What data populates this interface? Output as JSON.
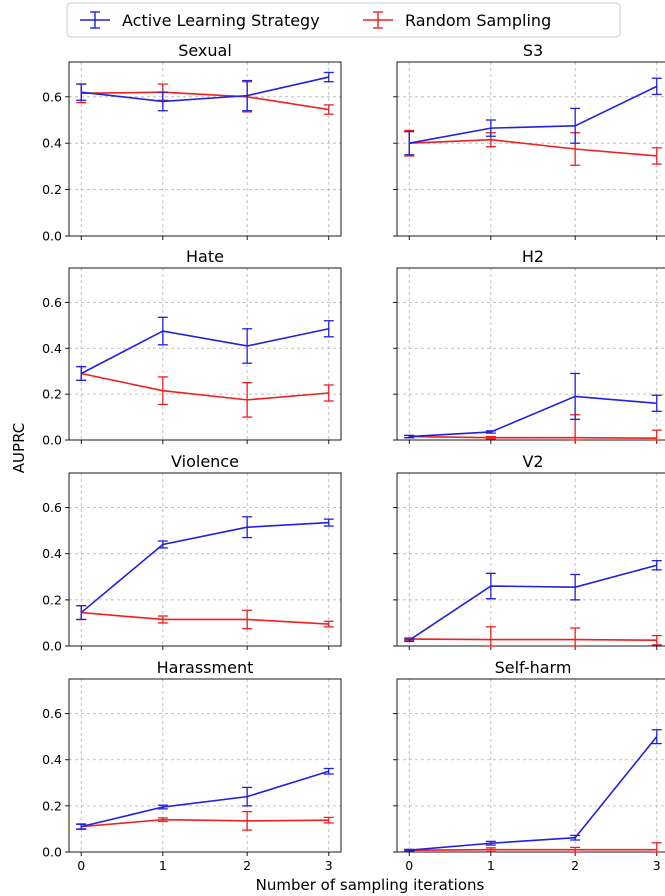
{
  "chart_data": {
    "type": "line",
    "xlabel": "Number of sampling iterations",
    "ylabel": "AUPRC",
    "x": [
      0,
      1,
      2,
      3
    ],
    "xticks": [
      "0",
      "1",
      "2",
      "3"
    ],
    "yticks": [
      "0.0",
      "0.2",
      "0.4",
      "0.6"
    ],
    "ylim": [
      0,
      0.75
    ],
    "grid": true,
    "legend": {
      "placement": "top",
      "entries": [
        {
          "name": "Active Learning Strategy",
          "color": "#2020e0"
        },
        {
          "name": "Random Sampling",
          "color": "#ee2020"
        }
      ]
    },
    "panels": [
      {
        "title": "Sexual",
        "series": [
          {
            "name": "Active Learning Strategy",
            "values": [
              0.62,
              0.58,
              0.605,
              0.685
            ],
            "errors": [
              0.035,
              0.04,
              0.065,
              0.02
            ]
          },
          {
            "name": "Random Sampling",
            "values": [
              0.615,
              0.62,
              0.6,
              0.545
            ],
            "errors": [
              0.04,
              0.035,
              0.065,
              0.02
            ]
          }
        ]
      },
      {
        "title": "S3",
        "series": [
          {
            "name": "Active Learning Strategy",
            "values": [
              0.4,
              0.465,
              0.475,
              0.645
            ],
            "errors": [
              0.05,
              0.035,
              0.075,
              0.035
            ]
          },
          {
            "name": "Random Sampling",
            "values": [
              0.4,
              0.415,
              0.375,
              0.345
            ],
            "errors": [
              0.055,
              0.03,
              0.07,
              0.035
            ]
          }
        ]
      },
      {
        "title": "Hate",
        "series": [
          {
            "name": "Active Learning Strategy",
            "values": [
              0.29,
              0.475,
              0.41,
              0.485
            ],
            "errors": [
              0.03,
              0.06,
              0.075,
              0.035
            ]
          },
          {
            "name": "Random Sampling",
            "values": [
              0.29,
              0.215,
              0.175,
              0.205
            ],
            "errors": [
              0.03,
              0.06,
              0.075,
              0.035
            ]
          }
        ]
      },
      {
        "title": "H2",
        "series": [
          {
            "name": "Active Learning Strategy",
            "values": [
              0.015,
              0.035,
              0.19,
              0.16
            ],
            "errors": [
              0.005,
              0.005,
              0.1,
              0.035
            ]
          },
          {
            "name": "Random Sampling",
            "values": [
              0.015,
              0.01,
              0.01,
              0.008
            ],
            "errors": [
              0.005,
              0.005,
              0.1,
              0.035
            ]
          }
        ]
      },
      {
        "title": "Violence",
        "series": [
          {
            "name": "Active Learning Strategy",
            "values": [
              0.145,
              0.44,
              0.515,
              0.535
            ],
            "errors": [
              0.03,
              0.015,
              0.045,
              0.015
            ]
          },
          {
            "name": "Random Sampling",
            "values": [
              0.145,
              0.115,
              0.115,
              0.095
            ],
            "errors": [
              0.03,
              0.015,
              0.04,
              0.012
            ]
          }
        ]
      },
      {
        "title": "V2",
        "series": [
          {
            "name": "Active Learning Strategy",
            "values": [
              0.025,
              0.26,
              0.255,
              0.35
            ],
            "errors": [
              0.005,
              0.055,
              0.055,
              0.02
            ]
          },
          {
            "name": "Random Sampling",
            "values": [
              0.03,
              0.028,
              0.028,
              0.025
            ],
            "errors": [
              0.005,
              0.055,
              0.05,
              0.02
            ]
          }
        ]
      },
      {
        "title": "Harassment",
        "series": [
          {
            "name": "Active Learning Strategy",
            "values": [
              0.11,
              0.195,
              0.24,
              0.35
            ],
            "errors": [
              0.01,
              0.008,
              0.04,
              0.012
            ]
          },
          {
            "name": "Random Sampling",
            "values": [
              0.11,
              0.14,
              0.135,
              0.138
            ],
            "errors": [
              0.012,
              0.008,
              0.04,
              0.012
            ]
          }
        ]
      },
      {
        "title": "Self-harm",
        "series": [
          {
            "name": "Active Learning Strategy",
            "values": [
              0.008,
              0.038,
              0.062,
              0.5
            ],
            "errors": [
              0.003,
              0.008,
              0.01,
              0.03
            ]
          },
          {
            "name": "Random Sampling",
            "values": [
              0.008,
              0.01,
              0.01,
              0.01
            ],
            "errors": [
              0.003,
              0.008,
              0.01,
              0.03
            ]
          }
        ]
      }
    ]
  }
}
